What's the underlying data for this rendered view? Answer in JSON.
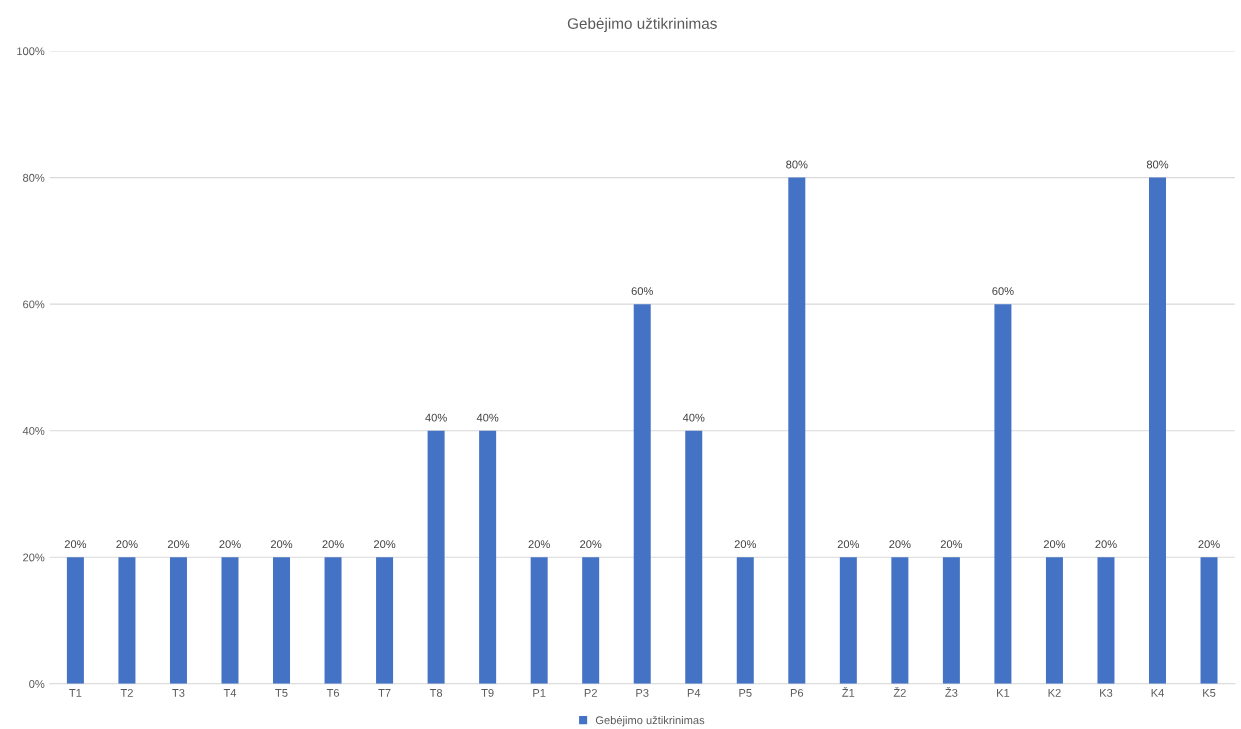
{
  "chart_data": {
    "type": "bar",
    "title": "Gebėjimo užtikrinimas",
    "categories": [
      "T1",
      "T2",
      "T3",
      "T4",
      "T5",
      "T6",
      "T7",
      "T8",
      "T9",
      "P1",
      "P2",
      "P3",
      "P4",
      "P5",
      "P6",
      "Ž1",
      "Ž2",
      "Ž3",
      "K1",
      "K2",
      "K3",
      "K4",
      "K5"
    ],
    "series": [
      {
        "name": "Gebėjimo užtikrinimas",
        "color": "#4472c4",
        "values": [
          20,
          20,
          20,
          20,
          20,
          20,
          20,
          40,
          40,
          20,
          20,
          60,
          40,
          20,
          80,
          20,
          20,
          20,
          60,
          20,
          20,
          80,
          20
        ],
        "value_labels": [
          "20%",
          "20%",
          "20%",
          "20%",
          "20%",
          "20%",
          "20%",
          "40%",
          "40%",
          "20%",
          "20%",
          "60%",
          "40%",
          "20%",
          "80%",
          "20%",
          "20%",
          "20%",
          "60%",
          "20%",
          "20%",
          "80%",
          "20%"
        ]
      }
    ],
    "ylim": [
      0,
      100
    ],
    "yticks": [
      {
        "value": 0,
        "label": "0%"
      },
      {
        "value": 20,
        "label": "20%"
      },
      {
        "value": 40,
        "label": "40%"
      },
      {
        "value": 60,
        "label": "60%"
      },
      {
        "value": 80,
        "label": "80%"
      },
      {
        "value": 100,
        "label": "100%"
      }
    ],
    "grid": "y",
    "legend": "bottom"
  }
}
